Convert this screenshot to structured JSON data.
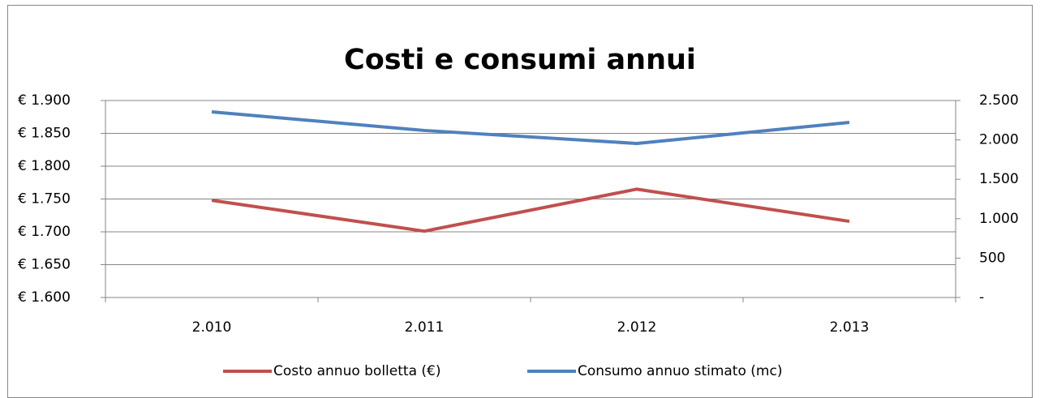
{
  "chart_data": {
    "type": "line",
    "title": "Costi e consumi annui",
    "categories": [
      "2.010",
      "2.011",
      "2.012",
      "2.013"
    ],
    "series": [
      {
        "name": "Costo annuo bolletta (€)",
        "color": "#c0504d",
        "values": [
          1748,
          1701,
          1765,
          1716
        ]
      },
      {
        "name": "Consumo annuo stimato (mc)",
        "color": "#4f81bd",
        "axis": "y2",
        "values": [
          2356,
          2120,
          1955,
          2222
        ]
      }
    ],
    "ylim": [
      1600,
      1900
    ],
    "yticks": [
      {
        "value": 1600,
        "label": "€ 1.600"
      },
      {
        "value": 1650,
        "label": "€ 1.650"
      },
      {
        "value": 1700,
        "label": "€ 1.700"
      },
      {
        "value": 1750,
        "label": "€ 1.750"
      },
      {
        "value": 1800,
        "label": "€ 1.800"
      },
      {
        "value": 1850,
        "label": "€ 1.850"
      },
      {
        "value": 1900,
        "label": "€ 1.900"
      }
    ],
    "y2lim": [
      0,
      2500
    ],
    "y2ticks": [
      {
        "value": 0,
        "label": "-"
      },
      500,
      {
        "value": 1000,
        "label": "1.000"
      },
      {
        "value": 1500,
        "label": "1.500"
      },
      {
        "value": 2000,
        "label": "2.000"
      },
      {
        "value": 2500,
        "label": "2.500"
      }
    ],
    "grid": true,
    "legend": "bottom"
  }
}
